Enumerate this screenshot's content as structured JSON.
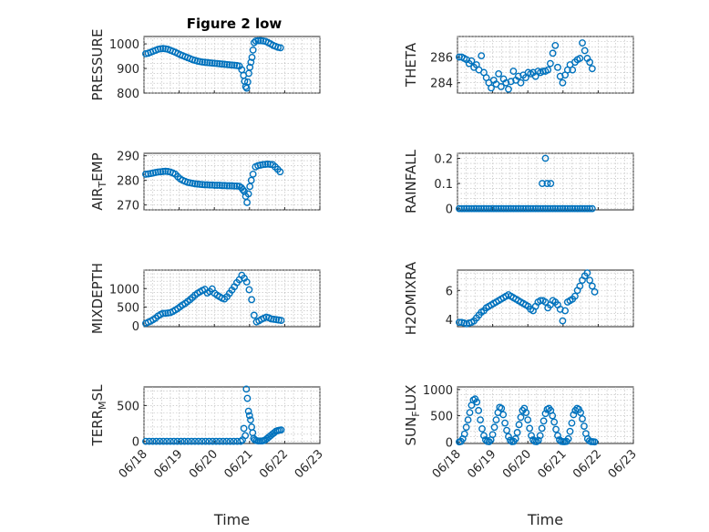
{
  "figure_title": "Figure 2 low",
  "marker_color": "#0072bd",
  "x_tick_labels": [
    "06/18",
    "06/19",
    "06/20",
    "06/21",
    "06/22",
    "06/23"
  ],
  "x_label": "Time",
  "chart_data": [
    {
      "type": "scatter",
      "title": "Figure 2 low",
      "ylabel": "PRESSURE",
      "xlabel": "",
      "x_unit": "days since 06/18 00:00",
      "xlim": [
        0,
        5
      ],
      "ylim": [
        800,
        1030
      ],
      "yticks": [
        800,
        900,
        1000
      ],
      "grid": true,
      "x": [
        0.05,
        0.12,
        0.19,
        0.26,
        0.33,
        0.4,
        0.47,
        0.54,
        0.61,
        0.68,
        0.75,
        0.82,
        0.89,
        0.96,
        1.03,
        1.1,
        1.17,
        1.24,
        1.31,
        1.38,
        1.45,
        1.52,
        1.59,
        1.66,
        1.73,
        1.8,
        1.87,
        1.94,
        2.01,
        2.08,
        2.15,
        2.22,
        2.29,
        2.36,
        2.43,
        2.5,
        2.57,
        2.64,
        2.71,
        2.78,
        2.83,
        2.86,
        2.89,
        2.92,
        2.95,
        2.98,
        3.01,
        3.04,
        3.07,
        3.1,
        3.13,
        3.18,
        3.25,
        3.32,
        3.39,
        3.46,
        3.53,
        3.6,
        3.67,
        3.74,
        3.81,
        3.88
      ],
      "y": [
        960,
        962,
        966,
        970,
        974,
        978,
        980,
        981,
        980,
        978,
        974,
        970,
        966,
        961,
        956,
        952,
        948,
        944,
        940,
        936,
        933,
        930,
        928,
        926,
        925,
        924,
        923,
        922,
        921,
        920,
        919,
        918,
        917,
        916,
        915,
        914,
        913,
        912,
        910,
        895,
        872,
        848,
        826,
        820,
        845,
        880,
        905,
        925,
        945,
        975,
        1005,
        1012,
        1013,
        1013,
        1012,
        1010,
        1005,
        1000,
        994,
        990,
        986,
        984
      ]
    },
    {
      "type": "scatter",
      "ylabel": "THETA",
      "xlabel": "",
      "x_unit": "days since 06/18 00:00",
      "xlim": [
        0,
        5
      ],
      "ylim": [
        283.2,
        287.6
      ],
      "yticks": [
        284,
        286
      ],
      "grid": true,
      "x": [
        0.05,
        0.12,
        0.19,
        0.26,
        0.33,
        0.4,
        0.47,
        0.54,
        0.61,
        0.68,
        0.75,
        0.82,
        0.89,
        0.96,
        1.03,
        1.1,
        1.17,
        1.24,
        1.31,
        1.38,
        1.45,
        1.52,
        1.59,
        1.66,
        1.73,
        1.8,
        1.87,
        1.94,
        2.01,
        2.08,
        2.15,
        2.22,
        2.29,
        2.36,
        2.43,
        2.5,
        2.57,
        2.64,
        2.71,
        2.78,
        2.85,
        2.92,
        2.99,
        3.06,
        3.13,
        3.2,
        3.27,
        3.34,
        3.41,
        3.48,
        3.55,
        3.62,
        3.69,
        3.76,
        3.83
      ],
      "y": [
        286.0,
        286.0,
        285.9,
        285.8,
        285.5,
        285.7,
        285.2,
        285.4,
        285.0,
        286.1,
        284.8,
        284.4,
        284.0,
        283.6,
        284.2,
        283.9,
        284.7,
        283.7,
        284.3,
        284.0,
        283.5,
        284.1,
        284.9,
        284.2,
        284.5,
        284.0,
        284.6,
        284.4,
        284.8,
        284.7,
        284.8,
        284.5,
        284.9,
        284.8,
        284.9,
        284.9,
        285.0,
        285.5,
        286.3,
        286.9,
        285.2,
        284.5,
        284.0,
        284.6,
        285.0,
        285.4,
        285.0,
        285.6,
        285.8,
        285.9,
        287.1,
        286.5,
        285.9,
        285.6,
        285.1
      ]
    },
    {
      "type": "scatter",
      "ylabel": "AIR_TEMP",
      "xlabel": "",
      "x_unit": "days since 06/18 00:00",
      "xlim": [
        0,
        5
      ],
      "ylim": [
        268,
        291
      ],
      "yticks": [
        270,
        280,
        290
      ],
      "grid": true,
      "x": [
        0.05,
        0.12,
        0.19,
        0.26,
        0.33,
        0.4,
        0.47,
        0.54,
        0.61,
        0.68,
        0.75,
        0.82,
        0.89,
        0.96,
        1.03,
        1.1,
        1.17,
        1.24,
        1.31,
        1.38,
        1.45,
        1.52,
        1.59,
        1.66,
        1.73,
        1.8,
        1.87,
        1.94,
        2.01,
        2.08,
        2.15,
        2.22,
        2.29,
        2.36,
        2.43,
        2.5,
        2.57,
        2.64,
        2.71,
        2.77,
        2.81,
        2.85,
        2.89,
        2.93,
        2.97,
        3.01,
        3.05,
        3.1,
        3.17,
        3.24,
        3.31,
        3.38,
        3.45,
        3.52,
        3.59,
        3.66,
        3.73,
        3.8,
        3.87
      ],
      "y": [
        282.5,
        282.6,
        282.8,
        283.0,
        283.2,
        283.4,
        283.5,
        283.6,
        283.7,
        283.6,
        283.4,
        283.0,
        282.5,
        281.5,
        280.6,
        280.0,
        279.6,
        279.2,
        279.0,
        278.8,
        278.6,
        278.5,
        278.4,
        278.3,
        278.2,
        278.2,
        278.1,
        278.1,
        278.0,
        278.0,
        278.0,
        277.9,
        277.9,
        277.8,
        277.8,
        277.8,
        277.7,
        277.7,
        277.6,
        277.0,
        276.2,
        275.5,
        273.5,
        271.0,
        274.5,
        277.5,
        280.0,
        282.5,
        285.5,
        286.0,
        286.2,
        286.4,
        286.5,
        286.6,
        286.5,
        286.4,
        285.5,
        284.5,
        283.5
      ]
    },
    {
      "type": "scatter",
      "ylabel": "RAINFALL",
      "xlabel": "",
      "x_unit": "days since 06/18 00:00",
      "xlim": [
        0,
        5
      ],
      "ylim": [
        -0.005,
        0.22
      ],
      "yticks": [
        0,
        0.1,
        0.2
      ],
      "grid": true,
      "x": [
        0.05,
        0.12,
        0.19,
        0.26,
        0.33,
        0.4,
        0.47,
        0.54,
        0.61,
        0.68,
        0.75,
        0.82,
        0.89,
        0.96,
        1.03,
        1.1,
        1.17,
        1.24,
        1.31,
        1.38,
        1.45,
        1.52,
        1.59,
        1.66,
        1.73,
        1.8,
        1.87,
        1.94,
        2.01,
        2.08,
        2.15,
        2.22,
        2.29,
        2.36,
        2.43,
        2.5,
        2.57,
        2.64,
        2.71,
        2.78,
        2.85,
        2.92,
        2.99,
        3.06,
        3.13,
        3.2,
        3.27,
        3.34,
        3.41,
        3.48,
        3.55,
        3.62,
        3.69,
        3.76,
        3.83,
        2.41,
        2.5,
        2.55,
        2.65
      ],
      "y": [
        0,
        0,
        0,
        0,
        0,
        0,
        0,
        0,
        0,
        0,
        0,
        0,
        0,
        0,
        0,
        0,
        0,
        0,
        0,
        0,
        0,
        0,
        0,
        0,
        0,
        0,
        0,
        0,
        0,
        0,
        0,
        0,
        0,
        0,
        0,
        0,
        0,
        0,
        0,
        0,
        0,
        0,
        0,
        0,
        0,
        0,
        0,
        0,
        0,
        0,
        0,
        0,
        0,
        0,
        0,
        0.1,
        0.2,
        0.1,
        0.1
      ]
    },
    {
      "type": "scatter",
      "ylabel": "MIXDEPTH",
      "xlabel": "",
      "x_unit": "days since 06/18 00:00",
      "xlim": [
        0,
        5
      ],
      "ylim": [
        -30,
        1500
      ],
      "yticks": [
        0,
        500,
        1000
      ],
      "grid": true,
      "x": [
        0.05,
        0.12,
        0.19,
        0.26,
        0.33,
        0.4,
        0.47,
        0.54,
        0.61,
        0.68,
        0.75,
        0.82,
        0.89,
        0.96,
        1.03,
        1.1,
        1.17,
        1.24,
        1.31,
        1.38,
        1.45,
        1.52,
        1.59,
        1.66,
        1.73,
        1.8,
        1.87,
        1.94,
        2.01,
        2.08,
        2.15,
        2.22,
        2.29,
        2.36,
        2.43,
        2.5,
        2.57,
        2.64,
        2.71,
        2.78,
        2.85,
        2.92,
        2.99,
        3.06,
        3.13,
        3.2,
        3.27,
        3.34,
        3.41,
        3.48,
        3.55,
        3.62,
        3.69,
        3.76,
        3.83,
        3.9
      ],
      "y": [
        60,
        90,
        120,
        160,
        200,
        260,
        300,
        330,
        330,
        340,
        350,
        380,
        420,
        460,
        510,
        560,
        600,
        650,
        700,
        760,
        820,
        870,
        910,
        950,
        980,
        880,
        920,
        990,
        870,
        820,
        780,
        740,
        720,
        780,
        870,
        960,
        1050,
        1160,
        1240,
        1360,
        1280,
        1180,
        970,
        700,
        280,
        100,
        130,
        170,
        200,
        230,
        210,
        180,
        170,
        160,
        150,
        140
      ]
    },
    {
      "type": "scatter",
      "ylabel": "H2OMIXRA",
      "xlabel": "",
      "x_unit": "days since 06/18 00:00",
      "xlim": [
        0,
        5
      ],
      "ylim": [
        3.5,
        7.4
      ],
      "yticks": [
        4,
        6
      ],
      "grid": true,
      "x": [
        0.05,
        0.12,
        0.19,
        0.26,
        0.33,
        0.4,
        0.47,
        0.54,
        0.61,
        0.68,
        0.75,
        0.82,
        0.89,
        0.96,
        1.03,
        1.1,
        1.17,
        1.24,
        1.31,
        1.38,
        1.45,
        1.52,
        1.59,
        1.66,
        1.73,
        1.8,
        1.87,
        1.94,
        2.01,
        2.08,
        2.15,
        2.22,
        2.29,
        2.36,
        2.43,
        2.5,
        2.57,
        2.64,
        2.71,
        2.78,
        2.85,
        2.92,
        2.99,
        3.06,
        3.13,
        3.2,
        3.27,
        3.34,
        3.41,
        3.48,
        3.55,
        3.62,
        3.69,
        3.76,
        3.83,
        3.9
      ],
      "y": [
        3.8,
        3.8,
        3.75,
        3.7,
        3.75,
        3.8,
        3.9,
        4.1,
        4.3,
        4.5,
        4.6,
        4.8,
        4.9,
        5.0,
        5.1,
        5.2,
        5.3,
        5.4,
        5.5,
        5.6,
        5.7,
        5.6,
        5.5,
        5.4,
        5.3,
        5.2,
        5.1,
        5.0,
        4.9,
        4.7,
        4.6,
        4.9,
        5.2,
        5.3,
        5.3,
        5.2,
        4.8,
        5.0,
        5.3,
        5.2,
        5.0,
        4.7,
        3.9,
        4.6,
        5.2,
        5.3,
        5.4,
        5.6,
        6.0,
        6.3,
        6.7,
        7.0,
        7.2,
        6.7,
        6.3,
        5.9
      ]
    },
    {
      "type": "scatter",
      "ylabel": "TERR_MSL",
      "xlabel": "Time",
      "x_unit": "days since 06/18 00:00",
      "xlim": [
        0,
        5
      ],
      "ylim": [
        -30,
        760
      ],
      "yticks": [
        0,
        500
      ],
      "grid": true,
      "x": [
        0.05,
        0.15,
        0.25,
        0.35,
        0.45,
        0.55,
        0.65,
        0.75,
        0.85,
        0.95,
        1.05,
        1.15,
        1.25,
        1.35,
        1.45,
        1.55,
        1.65,
        1.75,
        1.85,
        1.95,
        2.05,
        2.15,
        2.25,
        2.35,
        2.45,
        2.55,
        2.65,
        2.75,
        2.8,
        2.84,
        2.88,
        2.91,
        2.94,
        2.97,
        3.0,
        3.03,
        3.06,
        3.09,
        3.12,
        3.15,
        3.2,
        3.25,
        3.3,
        3.35,
        3.4,
        3.45,
        3.5,
        3.55,
        3.6,
        3.65,
        3.7,
        3.75,
        3.8,
        3.85,
        3.9
      ],
      "y": [
        0,
        0,
        0,
        0,
        0,
        0,
        0,
        0,
        0,
        0,
        0,
        0,
        0,
        0,
        0,
        0,
        0,
        0,
        0,
        0,
        0,
        0,
        0,
        0,
        0,
        0,
        0,
        0,
        20,
        180,
        80,
        730,
        600,
        420,
        360,
        300,
        200,
        120,
        40,
        20,
        10,
        5,
        5,
        5,
        10,
        20,
        40,
        60,
        80,
        100,
        120,
        140,
        150,
        155,
        160
      ]
    },
    {
      "type": "scatter",
      "ylabel": "SUN_FLUX",
      "xlabel": "Time",
      "x_unit": "days since 06/18 00:00",
      "xlim": [
        0,
        5
      ],
      "ylim": [
        -30,
        1050
      ],
      "yticks": [
        0,
        500,
        1000
      ],
      "grid": true,
      "x": [
        0.05,
        0.1,
        0.15,
        0.2,
        0.25,
        0.3,
        0.35,
        0.4,
        0.45,
        0.5,
        0.55,
        0.6,
        0.65,
        0.7,
        0.75,
        0.8,
        0.85,
        0.9,
        0.95,
        1.0,
        1.05,
        1.1,
        1.15,
        1.2,
        1.25,
        1.3,
        1.35,
        1.4,
        1.45,
        1.5,
        1.55,
        1.6,
        1.65,
        1.7,
        1.75,
        1.8,
        1.85,
        1.9,
        1.95,
        2.0,
        2.05,
        2.1,
        2.15,
        2.2,
        2.25,
        2.3,
        2.35,
        2.4,
        2.45,
        2.5,
        2.55,
        2.6,
        2.65,
        2.7,
        2.75,
        2.8,
        2.85,
        2.9,
        2.95,
        3.0,
        3.05,
        3.1,
        3.15,
        3.2,
        3.25,
        3.3,
        3.35,
        3.4,
        3.45,
        3.5,
        3.55,
        3.6,
        3.65,
        3.7,
        3.75,
        3.8,
        3.85,
        3.9
      ],
      "y": [
        0,
        10,
        60,
        150,
        280,
        420,
        560,
        700,
        800,
        820,
        760,
        600,
        420,
        250,
        120,
        40,
        10,
        5,
        40,
        140,
        280,
        420,
        560,
        660,
        640,
        520,
        360,
        220,
        100,
        30,
        5,
        10,
        60,
        180,
        330,
        470,
        600,
        640,
        560,
        420,
        260,
        120,
        40,
        10,
        5,
        30,
        120,
        260,
        400,
        540,
        620,
        640,
        600,
        500,
        380,
        240,
        120,
        40,
        10,
        5,
        5,
        10,
        60,
        200,
        360,
        520,
        600,
        640,
        620,
        560,
        440,
        300,
        160,
        60,
        20,
        5,
        5,
        0
      ]
    }
  ]
}
